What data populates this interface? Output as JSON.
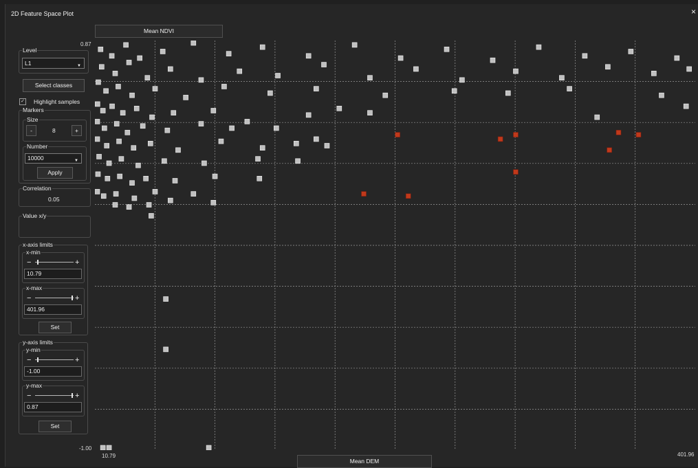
{
  "window": {
    "title": "2D Feature Space Plot",
    "close_glyph": "×"
  },
  "plot": {
    "y_axis_button": "Mean NDVI",
    "x_axis_button": "Mean DEM"
  },
  "sidebar": {
    "level": {
      "legend": "Level",
      "value": "L1"
    },
    "select_classes": "Select classes",
    "highlight_samples": {
      "label": "Highlight samples",
      "checked": true,
      "check_glyph": "✓"
    },
    "markers": {
      "legend": "Markers",
      "size": {
        "legend": "Size",
        "value": "8",
        "minus": "-",
        "plus": "+"
      },
      "number": {
        "legend": "Number",
        "value": "10000",
        "apply": "Apply"
      }
    },
    "correlation": {
      "legend": "Correlation",
      "value": "0.05"
    },
    "value_xy": {
      "legend": "Value x/y",
      "value": ""
    },
    "x_limits": {
      "legend": "x-axis limits",
      "min": {
        "legend": "x-min",
        "value": "10.79",
        "minus": "−",
        "plus": "+",
        "level": 0.05
      },
      "max": {
        "legend": "x-max",
        "value": "401.96",
        "minus": "−",
        "plus": "+",
        "level": 0.95
      },
      "set": "Set"
    },
    "y_limits": {
      "legend": "y-axis limits",
      "min": {
        "legend": "y-min",
        "value": "-1.00",
        "minus": "−",
        "plus": "+",
        "level": 0.05
      },
      "max": {
        "legend": "y-max",
        "value": "0.87",
        "minus": "−",
        "plus": "+",
        "level": 0.95
      },
      "set": "Set"
    }
  },
  "colors": {
    "sample": "#c0c0c0",
    "highlight": "#c0391b",
    "grid": "#9a9a9a"
  },
  "chart_data": {
    "type": "scatter",
    "xlabel": "Mean DEM",
    "ylabel": "Mean NDVI",
    "xlim": [
      10.79,
      401.96
    ],
    "ylim": [
      -1.0,
      0.87
    ],
    "x_tick_labels": [
      "10.79",
      "401.96"
    ],
    "y_tick_labels": [
      "0.87",
      "-1.00"
    ],
    "grid": true,
    "series": [
      {
        "points": [
          [
            14.5,
            0.83
          ],
          [
            21.8,
            0.8
          ],
          [
            31.0,
            0.85
          ],
          [
            40.0,
            0.79
          ],
          [
            55.0,
            0.82
          ],
          [
            75.0,
            0.86
          ],
          [
            98.0,
            0.81
          ],
          [
            120.0,
            0.84
          ],
          [
            150.0,
            0.8
          ],
          [
            180.0,
            0.85
          ],
          [
            210.0,
            0.79
          ],
          [
            240.0,
            0.83
          ],
          [
            270.0,
            0.78
          ],
          [
            300.0,
            0.84
          ],
          [
            330.0,
            0.8
          ],
          [
            360.0,
            0.82
          ],
          [
            390.0,
            0.79
          ],
          [
            15.2,
            0.75
          ],
          [
            24.0,
            0.72
          ],
          [
            33.0,
            0.77
          ],
          [
            45.0,
            0.7
          ],
          [
            60.0,
            0.74
          ],
          [
            80.0,
            0.69
          ],
          [
            105.0,
            0.73
          ],
          [
            130.0,
            0.71
          ],
          [
            160.0,
            0.76
          ],
          [
            190.0,
            0.7
          ],
          [
            220.0,
            0.74
          ],
          [
            250.0,
            0.69
          ],
          [
            285.0,
            0.73
          ],
          [
            315.0,
            0.7
          ],
          [
            345.0,
            0.75
          ],
          [
            375.0,
            0.72
          ],
          [
            398.0,
            0.74
          ],
          [
            13.0,
            0.68
          ],
          [
            18.0,
            0.64
          ],
          [
            26.0,
            0.66
          ],
          [
            35.0,
            0.62
          ],
          [
            50.0,
            0.65
          ],
          [
            70.0,
            0.61
          ],
          [
            95.0,
            0.66
          ],
          [
            125.0,
            0.63
          ],
          [
            155.0,
            0.65
          ],
          [
            200.0,
            0.62
          ],
          [
            245.0,
            0.64
          ],
          [
            280.0,
            0.63
          ],
          [
            320.0,
            0.65
          ],
          [
            380.0,
            0.62
          ],
          [
            12.5,
            0.58
          ],
          [
            16.0,
            0.55
          ],
          [
            22.0,
            0.57
          ],
          [
            29.0,
            0.54
          ],
          [
            38.0,
            0.56
          ],
          [
            48.0,
            0.52
          ],
          [
            62.0,
            0.54
          ],
          [
            88.0,
            0.55
          ],
          [
            150.0,
            0.53
          ],
          [
            170.0,
            0.56
          ],
          [
            190.0,
            0.54
          ],
          [
            338.0,
            0.52
          ],
          [
            396.0,
            0.57
          ],
          [
            12.0,
            0.5
          ],
          [
            17.0,
            0.47
          ],
          [
            25.0,
            0.49
          ],
          [
            32.0,
            0.45
          ],
          [
            42.0,
            0.48
          ],
          [
            58.0,
            0.46
          ],
          [
            80.0,
            0.49
          ],
          [
            100.0,
            0.47
          ],
          [
            110.0,
            0.5
          ],
          [
            129.0,
            0.47
          ],
          [
            12.2,
            0.42
          ],
          [
            18.5,
            0.39
          ],
          [
            26.5,
            0.41
          ],
          [
            36.0,
            0.38
          ],
          [
            47.0,
            0.4
          ],
          [
            65.0,
            0.37
          ],
          [
            93.0,
            0.41
          ],
          [
            120.0,
            0.38
          ],
          [
            142.0,
            0.4
          ],
          [
            155.0,
            0.42
          ],
          [
            162.0,
            0.39
          ],
          [
            13.5,
            0.34
          ],
          [
            20.0,
            0.31
          ],
          [
            28.0,
            0.33
          ],
          [
            39.0,
            0.3
          ],
          [
            56.0,
            0.32
          ],
          [
            82.0,
            0.31
          ],
          [
            117.0,
            0.33
          ],
          [
            143.0,
            0.32
          ],
          [
            12.8,
            0.26
          ],
          [
            19.0,
            0.24
          ],
          [
            27.0,
            0.25
          ],
          [
            35.0,
            0.22
          ],
          [
            44.0,
            0.24
          ],
          [
            63.0,
            0.23
          ],
          [
            89.0,
            0.25
          ],
          [
            118.0,
            0.24
          ],
          [
            12.3,
            0.18
          ],
          [
            16.5,
            0.16
          ],
          [
            24.5,
            0.17
          ],
          [
            36.5,
            0.15
          ],
          [
            50.0,
            0.18
          ],
          [
            60.0,
            0.14
          ],
          [
            75.0,
            0.17
          ],
          [
            24.0,
            0.12
          ],
          [
            33.0,
            0.11
          ],
          [
            46.0,
            0.12
          ],
          [
            88.0,
            0.13
          ],
          [
            47.5,
            0.07
          ],
          [
            57.0,
            -0.31
          ],
          [
            57.0,
            -0.54
          ],
          [
            16.0,
            -0.99
          ],
          [
            20.0,
            -0.99
          ],
          [
            85.0,
            -0.99
          ]
        ]
      },
      {
        "points": [
          [
            208.0,
            0.44
          ],
          [
            275.0,
            0.42
          ],
          [
            285.0,
            0.44
          ],
          [
            352.0,
            0.45
          ],
          [
            365.0,
            0.44
          ],
          [
            346.0,
            0.37
          ],
          [
            285.0,
            0.27
          ],
          [
            186.0,
            0.17
          ],
          [
            215.0,
            0.16
          ]
        ]
      }
    ]
  }
}
